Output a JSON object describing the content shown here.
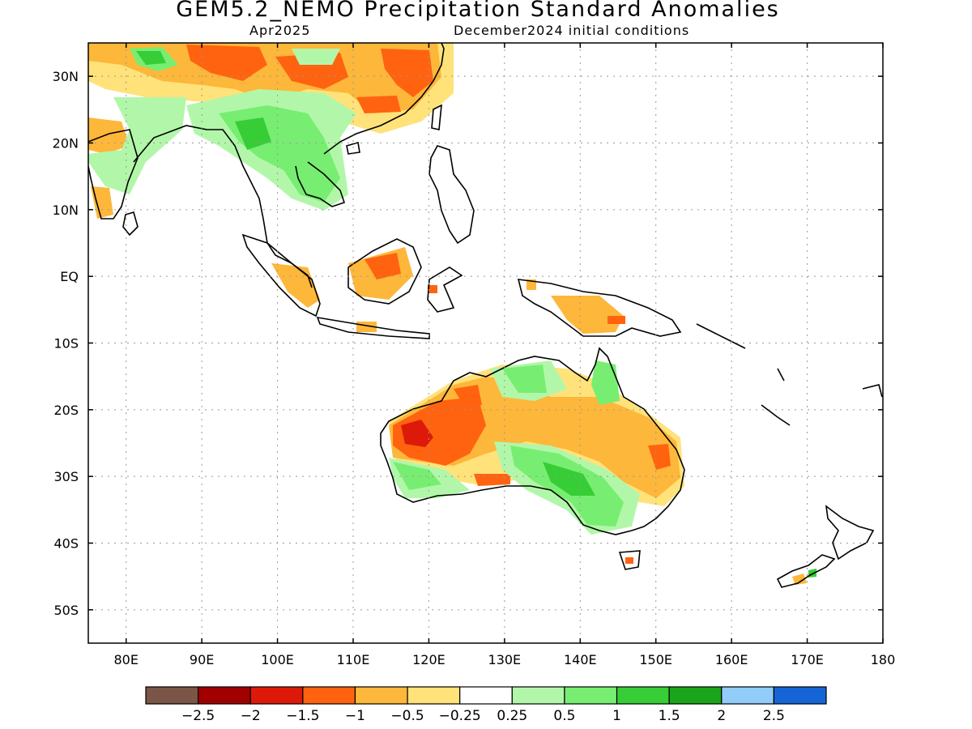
{
  "title": "GEM5.2_NEMO Precipitation Standard Anomalies",
  "subtitle_left": "Apr2025",
  "subtitle_right": "December2024 initial conditions",
  "map": {
    "lon_range": [
      75,
      180
    ],
    "lat_range": [
      -55,
      35
    ],
    "lat_ticks": [
      {
        "value": 30,
        "label": "30N"
      },
      {
        "value": 20,
        "label": "20N"
      },
      {
        "value": 10,
        "label": "10N"
      },
      {
        "value": 0,
        "label": "EQ"
      },
      {
        "value": -10,
        "label": "10S"
      },
      {
        "value": -20,
        "label": "20S"
      },
      {
        "value": -30,
        "label": "30S"
      },
      {
        "value": -40,
        "label": "40S"
      },
      {
        "value": -50,
        "label": "50S"
      }
    ],
    "lon_ticks": [
      {
        "value": 80,
        "label": "80E"
      },
      {
        "value": 90,
        "label": "90E"
      },
      {
        "value": 100,
        "label": "100E"
      },
      {
        "value": 110,
        "label": "110E"
      },
      {
        "value": 120,
        "label": "120E"
      },
      {
        "value": 130,
        "label": "130E"
      },
      {
        "value": 140,
        "label": "140E"
      },
      {
        "value": 150,
        "label": "150E"
      },
      {
        "value": 160,
        "label": "160E"
      },
      {
        "value": 170,
        "label": "170E"
      },
      {
        "value": 180,
        "label": "180"
      }
    ],
    "grid": "dotted"
  },
  "colorbar": {
    "colors": [
      "#7a5548",
      "#a00000",
      "#dd1a0a",
      "#ff6310",
      "#fdb73a",
      "#ffe27a",
      "#ffffff",
      "#b2f7a9",
      "#77ee71",
      "#37cd37",
      "#1aa51a",
      "#92ccf9",
      "#1565d6"
    ],
    "labels": [
      "−2.5",
      "−2",
      "−1.5",
      "−1",
      "−0.5",
      "−0.25",
      "0.25",
      "0.5",
      "1",
      "1.5",
      "2",
      "2.5"
    ]
  },
  "anomaly_regions": [
    {
      "name": "australia-west-dry",
      "level": "-1.5",
      "color": "#dd1a0a"
    },
    {
      "name": "australia-interior-dry",
      "level": "-1",
      "color": "#ff6310"
    },
    {
      "name": "australia-central-east-dry",
      "level": "-0.5",
      "color": "#fdb73a"
    },
    {
      "name": "australia-southeast-wet",
      "level": "0.5",
      "color": "#77ee71"
    },
    {
      "name": "indochina-wet",
      "level": "0.5",
      "color": "#77ee71"
    },
    {
      "name": "china-dry",
      "level": "-1",
      "color": "#ff6310"
    },
    {
      "name": "borneo-dry",
      "level": "-0.5",
      "color": "#fdb73a"
    },
    {
      "name": "new-guinea-dry",
      "level": "-0.5",
      "color": "#fdb73a"
    }
  ]
}
